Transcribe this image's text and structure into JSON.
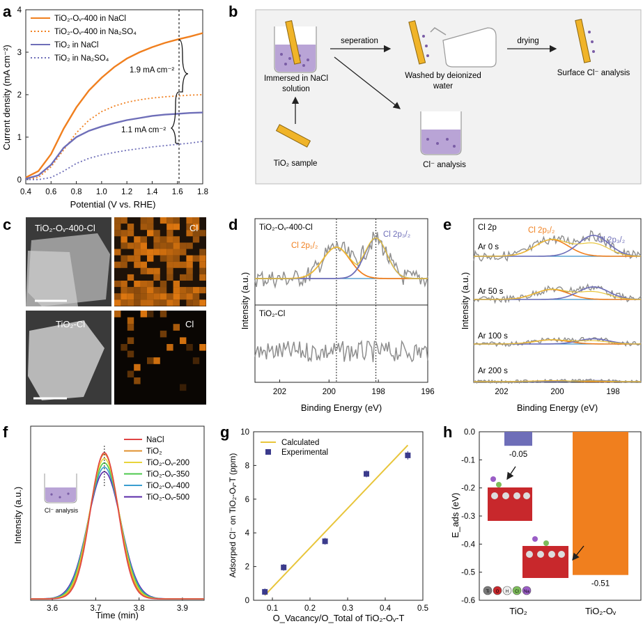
{
  "panels": {
    "a": {
      "letter": "a"
    },
    "b": {
      "letter": "b"
    },
    "c": {
      "letter": "c"
    },
    "d": {
      "letter": "d"
    },
    "e": {
      "letter": "e"
    },
    "f": {
      "letter": "f"
    },
    "g": {
      "letter": "g"
    },
    "h": {
      "letter": "h"
    }
  },
  "colors": {
    "orange": "#F07F1E",
    "purple": "#6E6EB8",
    "yellow": "#E8C53A",
    "blue": "#3A8EC8",
    "gray": "#8E8E8E",
    "teal": "#4AA8C9",
    "green": "#4CC94C",
    "red": "#E04444"
  },
  "panel_b": {
    "step1": "Immersed in NaCl solution",
    "step1_line1": "Immersed in NaCl",
    "step1_line2": "solution",
    "arrow1": "seperation",
    "step2_line1": "Washed by deionized",
    "step2_line2": "water",
    "arrow2": "drying",
    "step3": "Surface Cl⁻ analysis",
    "sample": "TiO₂ sample",
    "analysis": "Cl⁻ analysis"
  },
  "panel_c": {
    "top_left": "TiO₂-Oᵥ-400-Cl",
    "top_right": "Cl",
    "bottom_left": "TiO₂-Cl",
    "bottom_right": "Cl"
  },
  "chart_data": [
    {
      "panel": "a",
      "type": "line",
      "xlabel": "Potential (V vs. RHE)",
      "ylabel": "Current density (mA cm⁻²)",
      "xlim": [
        0.4,
        1.8
      ],
      "ylim": [
        -0.1,
        4.0
      ],
      "xticks": [
        0.4,
        0.6,
        0.8,
        1.0,
        1.2,
        1.4,
        1.6,
        1.8
      ],
      "yticks": [
        0,
        1,
        2,
        3,
        4
      ],
      "series": [
        {
          "name": "TiO₂-Oᵥ-400 in NaCl",
          "color": "#F07F1E",
          "style": "solid",
          "x": [
            0.4,
            0.5,
            0.6,
            0.7,
            0.8,
            0.9,
            1.0,
            1.1,
            1.2,
            1.3,
            1.4,
            1.5,
            1.6,
            1.7,
            1.8
          ],
          "y": [
            0.05,
            0.2,
            0.6,
            1.2,
            1.7,
            2.1,
            2.4,
            2.65,
            2.85,
            3.0,
            3.12,
            3.22,
            3.3,
            3.37,
            3.45
          ]
        },
        {
          "name": "TiO₂-Oᵥ-400 in Na₂SO₄",
          "color": "#F07F1E",
          "style": "dotted",
          "x": [
            0.4,
            0.5,
            0.6,
            0.7,
            0.8,
            0.9,
            1.0,
            1.1,
            1.2,
            1.3,
            1.4,
            1.5,
            1.6,
            1.7,
            1.8
          ],
          "y": [
            0.0,
            0.05,
            0.3,
            0.7,
            1.1,
            1.4,
            1.6,
            1.73,
            1.82,
            1.88,
            1.92,
            1.95,
            1.97,
            1.99,
            2.0
          ]
        },
        {
          "name": "TiO₂ in NaCl",
          "color": "#6E6EB8",
          "style": "solid",
          "x": [
            0.4,
            0.5,
            0.6,
            0.7,
            0.8,
            0.9,
            1.0,
            1.1,
            1.2,
            1.3,
            1.4,
            1.5,
            1.6,
            1.7,
            1.8
          ],
          "y": [
            0.02,
            0.1,
            0.35,
            0.75,
            1.0,
            1.15,
            1.25,
            1.33,
            1.4,
            1.45,
            1.5,
            1.53,
            1.55,
            1.57,
            1.58
          ]
        },
        {
          "name": "TiO₂ in Na₂SO₄",
          "color": "#6E6EB8",
          "style": "dotted",
          "x": [
            0.4,
            0.5,
            0.6,
            0.7,
            0.8,
            0.9,
            1.0,
            1.1,
            1.2,
            1.3,
            1.4,
            1.5,
            1.6,
            1.7,
            1.8
          ],
          "y": [
            0.0,
            0.0,
            0.05,
            0.2,
            0.38,
            0.5,
            0.58,
            0.64,
            0.69,
            0.73,
            0.77,
            0.8,
            0.83,
            0.86,
            0.9
          ]
        }
      ],
      "annotations": [
        "1.9 mA cm⁻²",
        "1.1 mA cm⁻²"
      ]
    },
    {
      "panel": "d",
      "type": "line",
      "xlabel": "Binding Energy (eV)",
      "ylabel": "Intensity (a.u.)",
      "xlim": [
        203,
        196
      ],
      "xticks": [
        202,
        200,
        198,
        196
      ],
      "top_label": "TiO₂-Oᵥ-400-Cl",
      "bottom_label": "TiO₂-Cl",
      "peak1": "Cl 2p₁/₂",
      "peak2": "Cl 2p₃/₂",
      "peak1_center": 199.7,
      "peak2_center": 198.1
    },
    {
      "panel": "e",
      "type": "line",
      "xlabel": "Binding Energy (eV)",
      "ylabel": "Intensity (a.u.)",
      "xlim": [
        203,
        197
      ],
      "xticks": [
        202,
        200,
        198
      ],
      "title": "Cl 2p",
      "peak1": "Cl 2p₁/₂",
      "peak2": "Cl 2p₃/₂",
      "traces": [
        "Ar 0 s",
        "Ar 50 s",
        "Ar 100 s",
        "Ar 200 s"
      ],
      "amplitudes": [
        1.0,
        0.6,
        0.25,
        0.05
      ]
    },
    {
      "panel": "f",
      "type": "line",
      "xlabel": "Time (min)",
      "ylabel": "Intensity (a.u.)",
      "xlim": [
        3.55,
        3.95
      ],
      "xticks": [
        3.6,
        3.7,
        3.8,
        3.9
      ],
      "peak_center": 3.72,
      "inset_label": "Cl⁻ analysis",
      "series": [
        {
          "name": "NaCl",
          "color": "#E04444",
          "height": 1.0
        },
        {
          "name": "TiO₂",
          "color": "#E0902E",
          "height": 0.99
        },
        {
          "name": "TiO₂-Oᵥ-200",
          "color": "#E8D43A",
          "height": 0.96
        },
        {
          "name": "TiO₂-Oᵥ-350",
          "color": "#4CC94C",
          "height": 0.93
        },
        {
          "name": "TiO₂-Oᵥ-400",
          "color": "#3A9ED0",
          "height": 0.9
        },
        {
          "name": "TiO₂-Oᵥ-500",
          "color": "#5A2AA8",
          "height": 0.87
        }
      ]
    },
    {
      "panel": "g",
      "type": "scatter",
      "xlabel": "O_Vacancy/O_Total of TiO₂-Oᵥ-T",
      "ylabel": "Adsorped Cl⁻ on TiO₂-Oᵥ-T (ppm)",
      "xlim": [
        0.05,
        0.5
      ],
      "ylim": [
        0,
        10
      ],
      "xticks": [
        0.1,
        0.2,
        0.3,
        0.4,
        0.5
      ],
      "yticks": [
        0,
        2,
        4,
        6,
        8,
        10
      ],
      "line": {
        "name": "Calculated",
        "x": [
          0.08,
          0.46
        ],
        "y": [
          0.3,
          9.2
        ]
      },
      "points": {
        "name": "Experimental",
        "x": [
          0.08,
          0.13,
          0.24,
          0.35,
          0.46
        ],
        "y": [
          0.5,
          1.95,
          3.5,
          7.5,
          8.6
        ],
        "err": [
          0.2,
          0.2,
          0.2,
          0.2,
          0.25
        ]
      }
    },
    {
      "panel": "h",
      "type": "bar",
      "ylabel": "E_ads (eV)",
      "categories": [
        "TiO₂",
        "TiO₂-Oᵥ"
      ],
      "values": [
        -0.05,
        -0.51
      ],
      "value_labels": [
        "-0.05",
        "-0.51"
      ],
      "colors": [
        "#6E6EB8",
        "#F07F1E"
      ],
      "ylim": [
        -0.6,
        0.0
      ],
      "yticks": [
        0.0,
        -0.1,
        -0.2,
        -0.3,
        -0.4,
        -0.5,
        -0.6
      ],
      "atom_legend": [
        "Ti",
        "O",
        "H",
        "Cl",
        "Na"
      ]
    }
  ]
}
